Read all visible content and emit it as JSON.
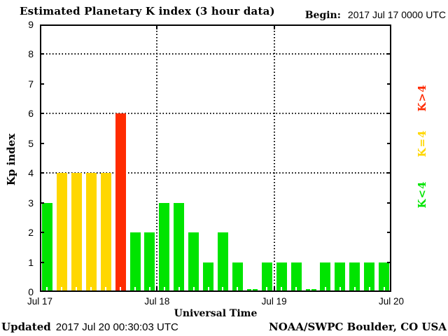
{
  "title": "Estimated Planetary K index (3 hour data)",
  "header": {
    "begin_label": "Begin:",
    "begin_value": "2017 Jul 17 0000 UTC"
  },
  "footer": {
    "updated_label": "Updated",
    "updated_value": "2017 Jul 20 00:30:03 UTC",
    "source": "NOAA/SWPC Boulder, CO USA"
  },
  "legend": {
    "items": [
      {
        "label": "K>4",
        "color": "#ff2b00"
      },
      {
        "label": "K=4",
        "color": "#ffd700"
      },
      {
        "label": "K<4",
        "color": "#00e400"
      }
    ]
  },
  "chart_data": {
    "type": "bar",
    "title": "Estimated Planetary K index (3 hour data)",
    "begin": "2017 Jul 17 0000 UTC",
    "xlabel": "Universal Time",
    "ylabel": "Kp index",
    "ylim": [
      0,
      9
    ],
    "y_ticks": [
      0,
      1,
      2,
      3,
      4,
      5,
      6,
      7,
      8,
      9
    ],
    "gridlines_y": [
      4,
      6,
      8
    ],
    "grid": "dotted",
    "interval_hours": 3,
    "x_tick_labels": [
      "Jul 17",
      "Jul 18",
      "Jul 19",
      "Jul 20"
    ],
    "categories": [
      "Jul 17 0000",
      "Jul 17 0300",
      "Jul 17 0600",
      "Jul 17 0900",
      "Jul 17 1200",
      "Jul 17 1500",
      "Jul 17 1800",
      "Jul 17 2100",
      "Jul 18 0000",
      "Jul 18 0300",
      "Jul 18 0600",
      "Jul 18 0900",
      "Jul 18 1200",
      "Jul 18 1500",
      "Jul 18 1800",
      "Jul 18 2100",
      "Jul 19 0000",
      "Jul 19 0300",
      "Jul 19 0600",
      "Jul 19 0900",
      "Jul 19 1200",
      "Jul 19 1500",
      "Jul 19 1800",
      "Jul 19 2100"
    ],
    "values": [
      3,
      4,
      4,
      4,
      4,
      6,
      2,
      2,
      3,
      3,
      2,
      1,
      2,
      1,
      0,
      1,
      1,
      1,
      0,
      1,
      1,
      1,
      1,
      1
    ],
    "color_rule": {
      "k_lt_4": "#00e400",
      "k_eq_4": "#ffd700",
      "k_gt_4": "#ff2b00"
    },
    "legend_position": "right"
  }
}
